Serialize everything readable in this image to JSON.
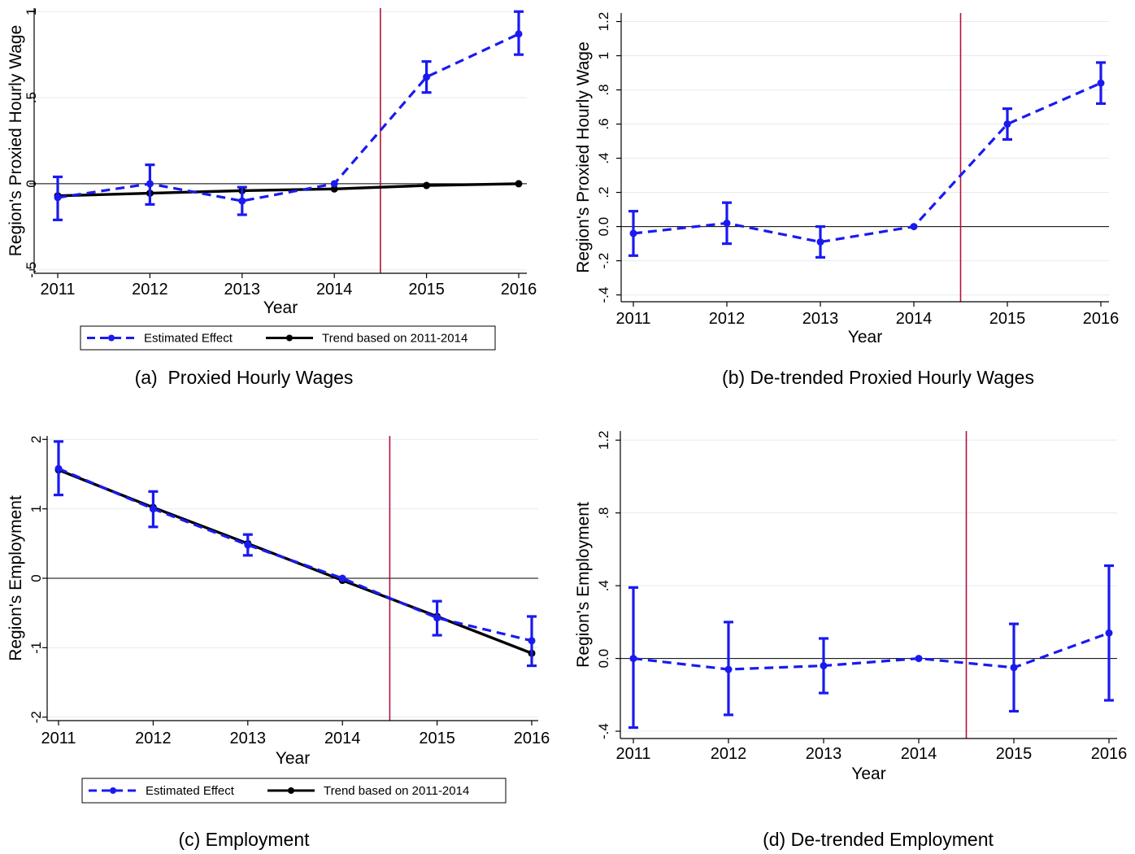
{
  "colors": {
    "estimate": "#1a1af0",
    "trend": "#000000",
    "vline": "#b3133b",
    "zero": "#000000",
    "grid": "#e4ecec",
    "axis": "#000000"
  },
  "chart_data": [
    {
      "id": "a",
      "type": "line",
      "caption": "(a)  Proxied Hourly Wages",
      "xlabel": "Year",
      "ylabel": "Region's Proxied Hourly Wage",
      "x": [
        2011,
        2012,
        2013,
        2014,
        2015,
        2016
      ],
      "xlim": [
        2011,
        2016
      ],
      "ylim": [
        -0.52,
        1.02
      ],
      "yticks": [
        -0.5,
        0,
        0.5,
        1
      ],
      "ytick_labels": [
        "-.5",
        "0",
        ".5",
        "1"
      ],
      "grid": true,
      "vline_x": 2014.5,
      "series": [
        {
          "name": "Estimated Effect",
          "style": "dashed",
          "values": [
            -0.08,
            0.0,
            -0.1,
            0.0,
            0.62,
            0.87
          ],
          "ci_low": [
            -0.21,
            -0.12,
            -0.18,
            0.0,
            0.53,
            0.75
          ],
          "ci_high": [
            0.04,
            0.11,
            -0.02,
            0.0,
            0.71,
            1.0
          ]
        },
        {
          "name": "Trend based on 2011-2014",
          "style": "solid",
          "values": [
            -0.07,
            -0.055,
            -0.04,
            -0.03,
            -0.01,
            0.0
          ]
        }
      ],
      "legend": [
        "Estimated Effect",
        "Trend based on 2011-2014"
      ],
      "legend_position": "bottom"
    },
    {
      "id": "b",
      "type": "line",
      "caption": "(b) De-trended Proxied Hourly Wages",
      "xlabel": "Year",
      "ylabel": "Region's Proxied Hourly Wage",
      "x": [
        2011,
        2012,
        2013,
        2014,
        2015,
        2016
      ],
      "xlim": [
        2011,
        2016
      ],
      "ylim": [
        -0.44,
        1.25
      ],
      "yticks": [
        -0.4,
        -0.2,
        0,
        0.2,
        0.4,
        0.6,
        0.8,
        1,
        1.2
      ],
      "ytick_labels": [
        "-.4",
        "-.2",
        "0.0",
        ".2",
        ".4",
        ".6",
        ".8",
        "1",
        "1.2"
      ],
      "grid": true,
      "vline_x": 2014.5,
      "series": [
        {
          "name": "",
          "style": "dashed",
          "values": [
            -0.04,
            0.02,
            -0.09,
            0.0,
            0.6,
            0.84
          ],
          "ci_low": [
            -0.17,
            -0.1,
            -0.18,
            0.0,
            0.51,
            0.72
          ],
          "ci_high": [
            0.09,
            0.14,
            0.0,
            0.0,
            0.69,
            0.96
          ]
        }
      ],
      "legend": []
    },
    {
      "id": "c",
      "type": "line",
      "caption": "(c) Employment",
      "xlabel": "Year",
      "ylabel": "Region's Employment",
      "x": [
        2011,
        2012,
        2013,
        2014,
        2015,
        2016
      ],
      "xlim": [
        2011,
        2016
      ],
      "ylim": [
        -2.05,
        2.05
      ],
      "yticks": [
        -2,
        -1,
        0,
        1,
        2
      ],
      "ytick_labels": [
        "-2",
        "-1",
        "0",
        "1",
        "2"
      ],
      "grid": true,
      "vline_x": 2014.5,
      "series": [
        {
          "name": "Estimated Effect",
          "style": "dashed",
          "values": [
            1.58,
            1.0,
            0.48,
            0.0,
            -0.57,
            -0.9
          ],
          "ci_low": [
            1.2,
            0.74,
            0.33,
            0.0,
            -0.82,
            -1.26
          ],
          "ci_high": [
            1.97,
            1.25,
            0.63,
            0.0,
            -0.33,
            -0.55
          ]
        },
        {
          "name": "Trend based on 2011-2014",
          "style": "solid",
          "values": [
            1.56,
            1.02,
            0.5,
            -0.03,
            -0.55,
            -1.08
          ]
        }
      ],
      "legend": [
        "Estimated Effect",
        "Trend based on 2011-2014"
      ],
      "legend_position": "bottom"
    },
    {
      "id": "d",
      "type": "line",
      "caption": "(d) De-trended Employment",
      "xlabel": "Year",
      "ylabel": "Region's Employment",
      "x": [
        2011,
        2012,
        2013,
        2014,
        2015,
        2016
      ],
      "xlim": [
        2011,
        2016
      ],
      "ylim": [
        -0.44,
        1.25
      ],
      "yticks": [
        -0.4,
        0,
        0.4,
        0.8,
        1.2
      ],
      "ytick_labels": [
        "-.4",
        "0.0",
        ".4",
        ".8",
        "1.2"
      ],
      "grid": true,
      "vline_x": 2014.5,
      "series": [
        {
          "name": "",
          "style": "dashed",
          "values": [
            0.0,
            -0.06,
            -0.04,
            0.0,
            -0.05,
            0.14
          ],
          "ci_low": [
            -0.38,
            -0.31,
            -0.19,
            0.0,
            -0.29,
            -0.23
          ],
          "ci_high": [
            0.39,
            0.2,
            0.11,
            0.0,
            0.19,
            0.51
          ]
        }
      ],
      "legend": []
    }
  ]
}
